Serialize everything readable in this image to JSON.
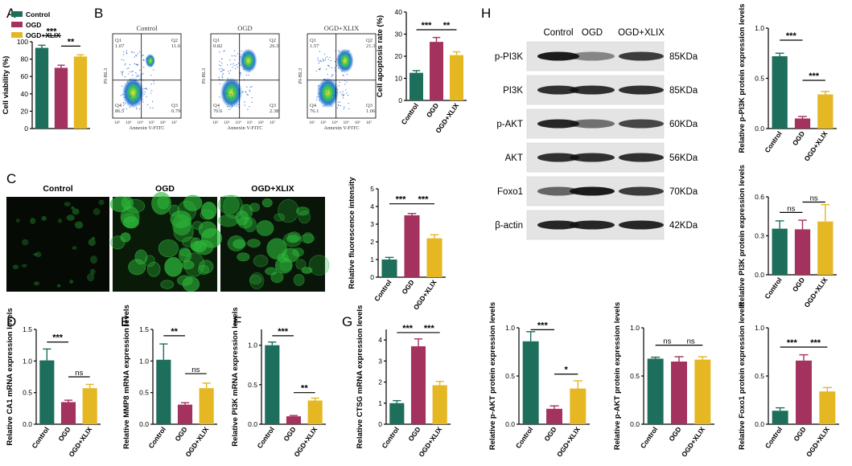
{
  "colors": {
    "control": "#1e6e5c",
    "ogd": "#a3325f",
    "xlix": "#e5b722",
    "fluor": "#2db83a"
  },
  "panel_labels": [
    "A",
    "B",
    "C",
    "D",
    "E",
    "F",
    "G",
    "H"
  ],
  "legend": {
    "items": [
      "Control",
      "OGD",
      "OGD+XLIX"
    ]
  },
  "flow": {
    "axis_x": "Annexin V-FITC",
    "axis_y": "PI-BL3",
    "ticks": [
      "10²",
      "10³",
      "10⁴",
      "10⁵",
      "10⁶",
      "10⁷"
    ],
    "plots": [
      {
        "title": "Control",
        "q1": "Q1\n1.07",
        "q2": "Q2\n11.6",
        "q3": "Q3\n0.79",
        "q4": "Q4\n86.5"
      },
      {
        "title": "OGD",
        "q1": "Q1\n0.82",
        "q2": "Q2\n26.3",
        "q3": "Q3\n2.38",
        "q4": "Q4\n70.6"
      },
      {
        "title": "OGD+XLIX",
        "q1": "Q1\n1.57",
        "q2": "Q2\n21.3",
        "q3": "Q3\n1.06",
        "q4": "Q4\n76.1"
      }
    ]
  },
  "microscopy": {
    "headers": [
      "Control",
      "OGD",
      "OGD+XLIX"
    ]
  },
  "western": {
    "headers": [
      "Control",
      "OGD",
      "OGD+XLIX"
    ],
    "rows": [
      {
        "name": "p-PI3K",
        "kda": "85KDa",
        "intensity": [
          0.95,
          0.45,
          0.8
        ]
      },
      {
        "name": "PI3K",
        "kda": "85KDa",
        "intensity": [
          0.85,
          0.85,
          0.85
        ]
      },
      {
        "name": "p-AKT",
        "kda": "60KDa",
        "intensity": [
          0.9,
          0.55,
          0.75
        ]
      },
      {
        "name": "AKT",
        "kda": "56KDa",
        "intensity": [
          0.85,
          0.85,
          0.85
        ]
      },
      {
        "name": "Foxo1",
        "kda": "70KDa",
        "intensity": [
          0.6,
          0.95,
          0.8
        ]
      },
      {
        "name": "β-actin",
        "kda": "42KDa",
        "intensity": [
          0.9,
          0.9,
          0.9
        ]
      }
    ]
  },
  "chart_data": [
    {
      "id": "A",
      "type": "bar",
      "categories": [
        "Control",
        "OGD",
        "OGD+XLIX"
      ],
      "values": [
        93,
        70,
        83
      ],
      "errors": [
        3,
        3,
        2
      ],
      "ylabel": "Cell viability (%)",
      "ylim": [
        0,
        100
      ],
      "yticks": [
        "0",
        "20",
        "40",
        "60",
        "80",
        "100"
      ],
      "sig": [
        {
          "label": "***",
          "from": 0,
          "to": 1,
          "level": 107
        },
        {
          "label": "**",
          "from": 1,
          "to": 2,
          "level": 95
        }
      ],
      "show_xlabels": false
    },
    {
      "id": "B",
      "type": "bar",
      "categories": [
        "Control",
        "OGD",
        "OGD+XLIX"
      ],
      "values": [
        12.5,
        26.5,
        20.5
      ],
      "errors": [
        1,
        2,
        1.5
      ],
      "ylabel": "Cell apoptosis rate (%)",
      "ylim": [
        0,
        40
      ],
      "yticks": [
        "0",
        "10",
        "20",
        "30",
        "40"
      ],
      "sig": [
        {
          "label": "***",
          "from": 0,
          "to": 1,
          "level": 32
        },
        {
          "label": "**",
          "from": 1,
          "to": 2,
          "level": 32
        }
      ],
      "show_xlabels": true
    },
    {
      "id": "C",
      "type": "bar",
      "categories": [
        "Control",
        "OGD",
        "OGD+XLIX"
      ],
      "values": [
        1.0,
        3.5,
        2.2
      ],
      "errors": [
        0.12,
        0.1,
        0.2
      ],
      "ylabel": "Relative fluorescence intensity",
      "ylim": [
        0,
        5
      ],
      "yticks": [
        "0",
        "1",
        "2",
        "3",
        "4",
        "5"
      ],
      "sig": [
        {
          "label": "***",
          "from": 0,
          "to": 1,
          "level": 4.15
        },
        {
          "label": "***",
          "from": 1,
          "to": 2,
          "level": 4.15
        }
      ],
      "show_xlabels": true
    },
    {
      "id": "D",
      "type": "bar",
      "categories": [
        "Control",
        "OGD",
        "OGD+XLIX"
      ],
      "values": [
        1.01,
        0.35,
        0.57
      ],
      "errors": [
        0.18,
        0.03,
        0.06
      ],
      "ylabel": "Relative CA1 mRNA expression levels",
      "ylim": [
        0,
        1.5
      ],
      "yticks": [
        "0.0",
        "0.5",
        "1.0",
        "1.5"
      ],
      "sig": [
        {
          "label": "***",
          "from": 0,
          "to": 1,
          "level": 1.3
        },
        {
          "label": "ns",
          "from": 1,
          "to": 2,
          "level": 0.75
        }
      ],
      "show_xlabels": true
    },
    {
      "id": "E",
      "type": "bar",
      "categories": [
        "Control",
        "OGD",
        "OGD+XLIX"
      ],
      "values": [
        1.02,
        0.31,
        0.57
      ],
      "errors": [
        0.25,
        0.03,
        0.08
      ],
      "ylabel": "Relative MMP8 mRNA expression levels",
      "ylim": [
        0,
        1.5
      ],
      "yticks": [
        "0.0",
        "0.5",
        "1.0",
        "1.5"
      ],
      "sig": [
        {
          "label": "**",
          "from": 0,
          "to": 1,
          "level": 1.4
        },
        {
          "label": "ns",
          "from": 1,
          "to": 2,
          "level": 0.8
        }
      ],
      "show_xlabels": true
    },
    {
      "id": "F",
      "type": "bar",
      "categories": [
        "Control",
        "OGD",
        "OGD+XLIX"
      ],
      "values": [
        1.0,
        0.1,
        0.3
      ],
      "errors": [
        0.04,
        0.01,
        0.03
      ],
      "ylabel": "Relative PI3K mRNA expression levels",
      "ylim": [
        0,
        1.2
      ],
      "yticks": [
        "0.0",
        "0.5",
        "1.0"
      ],
      "sig": [
        {
          "label": "***",
          "from": 0,
          "to": 1,
          "level": 1.12
        },
        {
          "label": "**",
          "from": 1,
          "to": 2,
          "level": 0.4
        }
      ],
      "show_xlabels": true
    },
    {
      "id": "G",
      "type": "bar",
      "categories": [
        "Control",
        "OGD",
        "OGD+XLIX"
      ],
      "values": [
        1.0,
        3.7,
        1.85
      ],
      "errors": [
        0.12,
        0.35,
        0.18
      ],
      "ylabel": "Relative CTSG mRNA expression levels",
      "ylim": [
        0,
        4.5
      ],
      "yticks": [
        "0",
        "1",
        "2",
        "3",
        "4"
      ],
      "sig": [
        {
          "label": "***",
          "from": 0,
          "to": 1,
          "level": 4.35
        },
        {
          "label": "***",
          "from": 1,
          "to": 2,
          "level": 4.35
        }
      ],
      "show_xlabels": true
    },
    {
      "id": "H1",
      "type": "bar",
      "categories": [
        "Control",
        "OGD",
        "OGD+XLIX"
      ],
      "values": [
        0.72,
        0.1,
        0.34
      ],
      "errors": [
        0.03,
        0.02,
        0.03
      ],
      "ylabel": "Relative p-PI3K protein expression levels",
      "ylim": [
        0,
        1.0
      ],
      "yticks": [
        "0.0",
        "0.5",
        "1.0"
      ],
      "sig": [
        {
          "label": "***",
          "from": 0,
          "to": 1,
          "level": 0.88
        },
        {
          "label": "***",
          "from": 1,
          "to": 2,
          "level": 0.48
        }
      ],
      "show_xlabels": true
    },
    {
      "id": "H2",
      "type": "bar",
      "categories": [
        "Control",
        "OGD",
        "OGD+XLIX"
      ],
      "values": [
        0.355,
        0.35,
        0.41
      ],
      "errors": [
        0.06,
        0.07,
        0.13
      ],
      "ylabel": "Relative PI3K protein expression levels",
      "ylim": [
        0,
        0.6
      ],
      "yticks": [
        "0.0",
        "0.3",
        "0.6"
      ],
      "sig": [
        {
          "label": "ns",
          "from": 0,
          "to": 1,
          "level": 0.48
        },
        {
          "label": "ns",
          "from": 1,
          "to": 2,
          "level": 0.56
        }
      ],
      "show_xlabels": true
    },
    {
      "id": "H3",
      "type": "bar",
      "categories": [
        "Control",
        "OGD",
        "OGD+XLIX"
      ],
      "values": [
        0.86,
        0.16,
        0.37
      ],
      "errors": [
        0.1,
        0.03,
        0.08
      ],
      "ylabel": "Relative p-AKT protein expression levels",
      "ylim": [
        0,
        1.0
      ],
      "yticks": [
        "0.0",
        "0.5",
        "1.0"
      ],
      "sig": [
        {
          "label": "***",
          "from": 0,
          "to": 1,
          "level": 0.98
        },
        {
          "label": "*",
          "from": 1,
          "to": 2,
          "level": 0.52
        }
      ],
      "show_xlabels": true
    },
    {
      "id": "H4",
      "type": "bar",
      "categories": [
        "Control",
        "OGD",
        "OGD+XLIX"
      ],
      "values": [
        0.68,
        0.65,
        0.67
      ],
      "errors": [
        0.015,
        0.05,
        0.03
      ],
      "ylabel": "Relative p-AKT protein expression levels",
      "ylim": [
        0,
        1.0
      ],
      "yticks": [
        "0.0",
        "0.5",
        "1.0"
      ],
      "sig": [
        {
          "label": "ns",
          "from": 0,
          "to": 1,
          "level": 0.82
        },
        {
          "label": "ns",
          "from": 1,
          "to": 2,
          "level": 0.82
        }
      ],
      "show_xlabels": true
    },
    {
      "id": "H5",
      "type": "bar",
      "categories": [
        "Control",
        "OGD",
        "OGD+XLIX"
      ],
      "values": [
        0.14,
        0.66,
        0.34
      ],
      "errors": [
        0.03,
        0.06,
        0.04
      ],
      "ylabel": "Relative Foxo1 protein expression levels",
      "ylim": [
        0,
        1.0
      ],
      "yticks": [
        "0.0",
        "0.5",
        "1.0"
      ],
      "sig": [
        {
          "label": "***",
          "from": 0,
          "to": 1,
          "level": 0.8
        },
        {
          "label": "***",
          "from": 1,
          "to": 2,
          "level": 0.8
        }
      ],
      "show_xlabels": true
    }
  ]
}
